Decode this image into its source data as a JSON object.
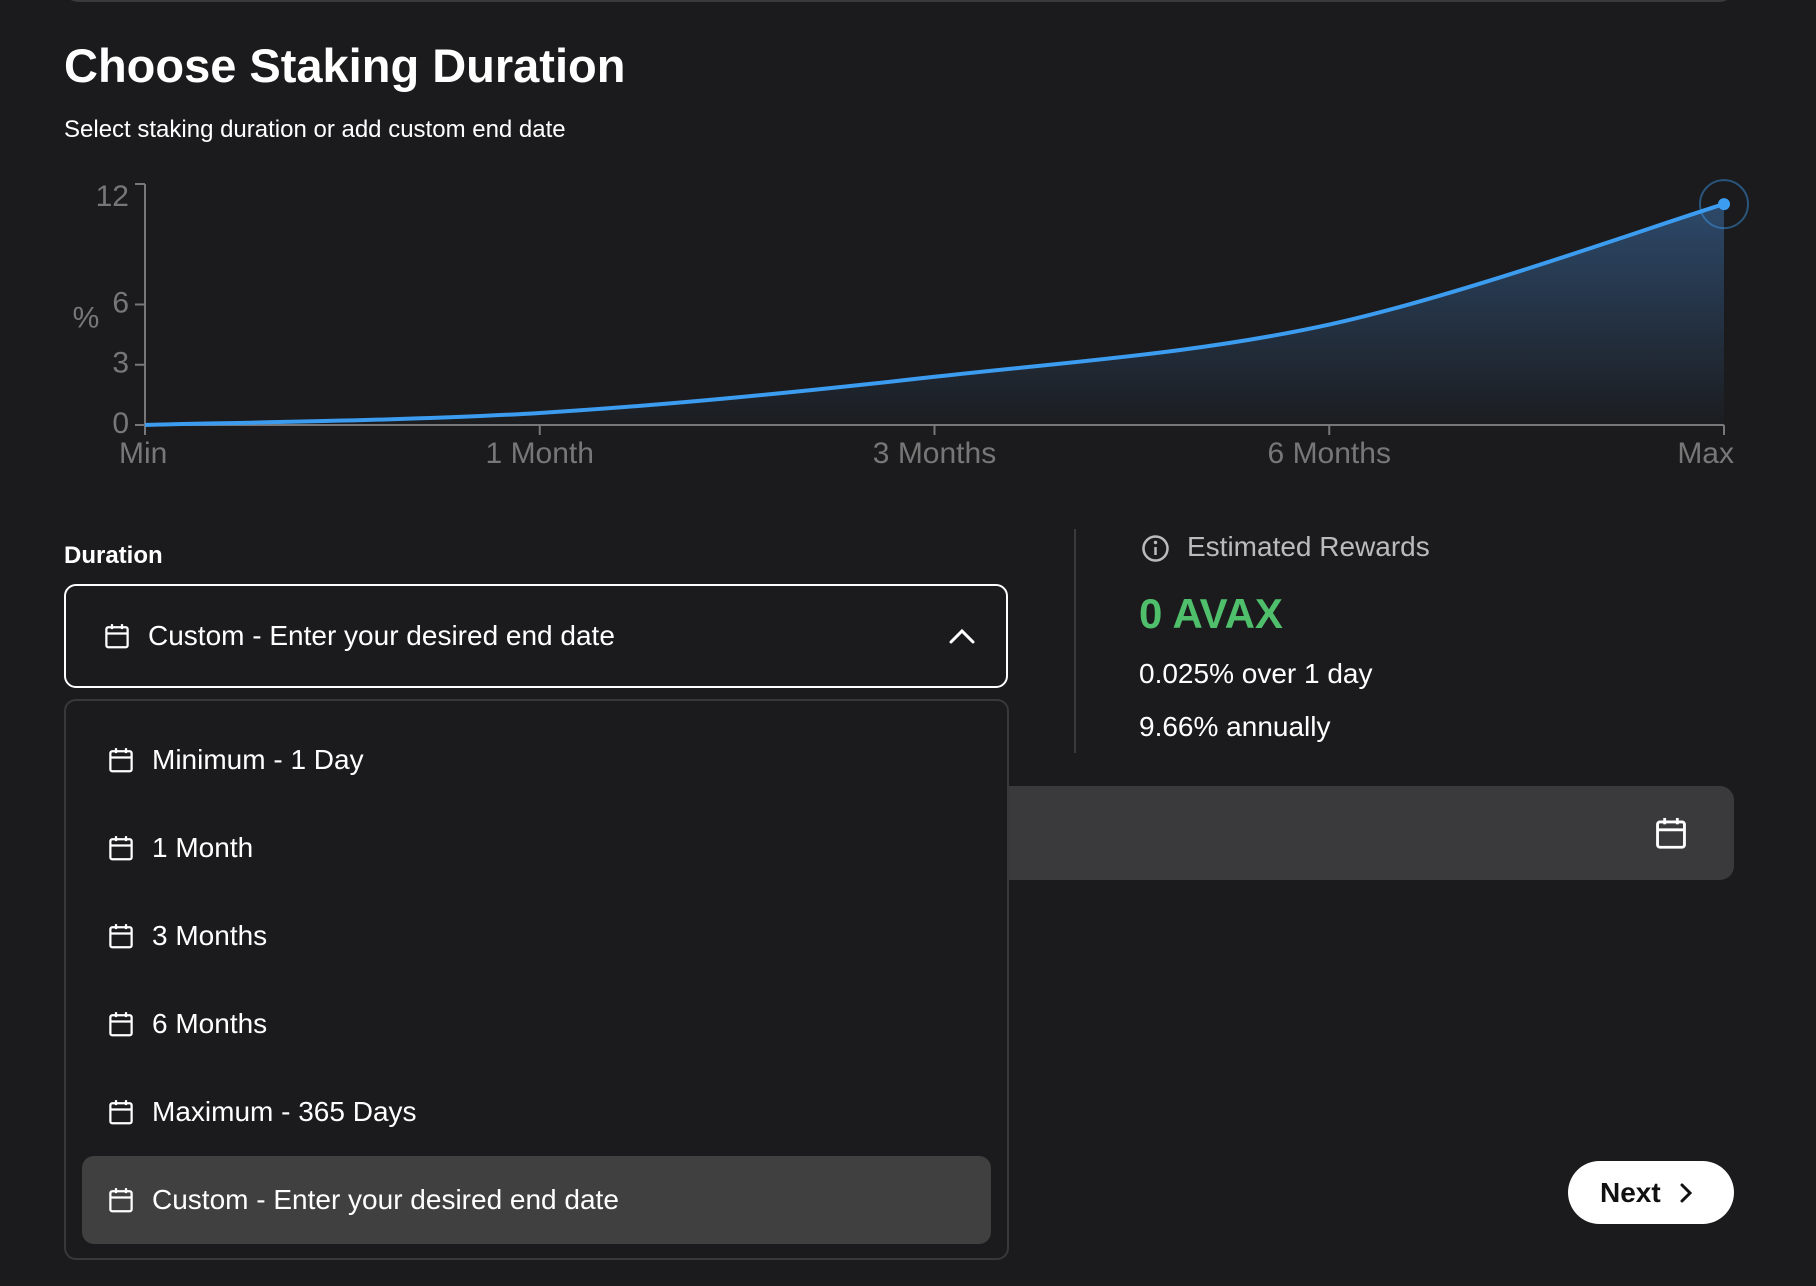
{
  "header": {
    "title": "Choose Staking Duration",
    "subtitle": "Select staking duration or add custom end date"
  },
  "chart_data": {
    "type": "line",
    "y_label": "%",
    "categories": [
      "Min",
      "1 Month",
      "3 Months",
      "6 Months",
      "Max"
    ],
    "series": [
      {
        "color": "#3b9cf0",
        "values": [
          0,
          0.6,
          2.4,
          5,
          11
        ]
      }
    ],
    "ylim": [
      0,
      12
    ],
    "yticks": [
      0,
      3,
      6,
      12
    ],
    "area": true
  },
  "duration": {
    "label": "Duration",
    "selected": "Custom - Enter your desired end date",
    "options": [
      "Minimum - 1 Day",
      "1 Month",
      "3 Months",
      "6 Months",
      "Maximum - 365 Days",
      "Custom - Enter your desired end date"
    ]
  },
  "rewards": {
    "label": "Estimated Rewards",
    "amount": "0 AVAX",
    "period_rate": "0.025% over 1 day",
    "annual_rate": "9.66% annually"
  },
  "next_button": "Next"
}
